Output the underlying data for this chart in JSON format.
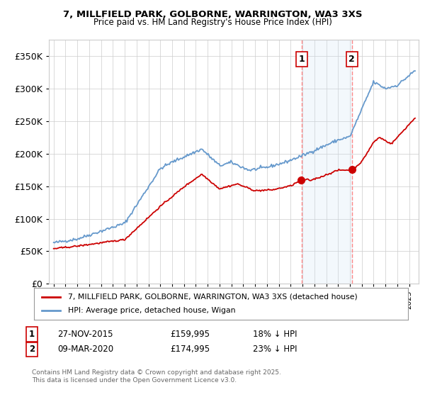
{
  "title_line1": "7, MILLFIELD PARK, GOLBORNE, WARRINGTON, WA3 3XS",
  "title_line2": "Price paid vs. HM Land Registry's House Price Index (HPI)",
  "legend_label_red": "7, MILLFIELD PARK, GOLBORNE, WARRINGTON, WA3 3XS (detached house)",
  "legend_label_blue": "HPI: Average price, detached house, Wigan",
  "annotation1_label": "1",
  "annotation1_date": "27-NOV-2015",
  "annotation1_price": "£159,995",
  "annotation1_hpi": "18% ↓ HPI",
  "annotation2_label": "2",
  "annotation2_date": "09-MAR-2020",
  "annotation2_price": "£174,995",
  "annotation2_hpi": "23% ↓ HPI",
  "footer": "Contains HM Land Registry data © Crown copyright and database right 2025.\nThis data is licensed under the Open Government Licence v3.0.",
  "ylim": [
    0,
    375000
  ],
  "yticks": [
    0,
    50000,
    100000,
    150000,
    200000,
    250000,
    300000,
    350000
  ],
  "color_red": "#cc0000",
  "color_blue": "#6699cc",
  "color_shade": "#cce0f5",
  "color_dashed": "#ff8888",
  "background_color": "#ffffff",
  "grid_color": "#cccccc",
  "sale1_year": 2015.917,
  "sale2_year": 2020.167,
  "sale1_price": 159995,
  "sale2_price": 174995
}
